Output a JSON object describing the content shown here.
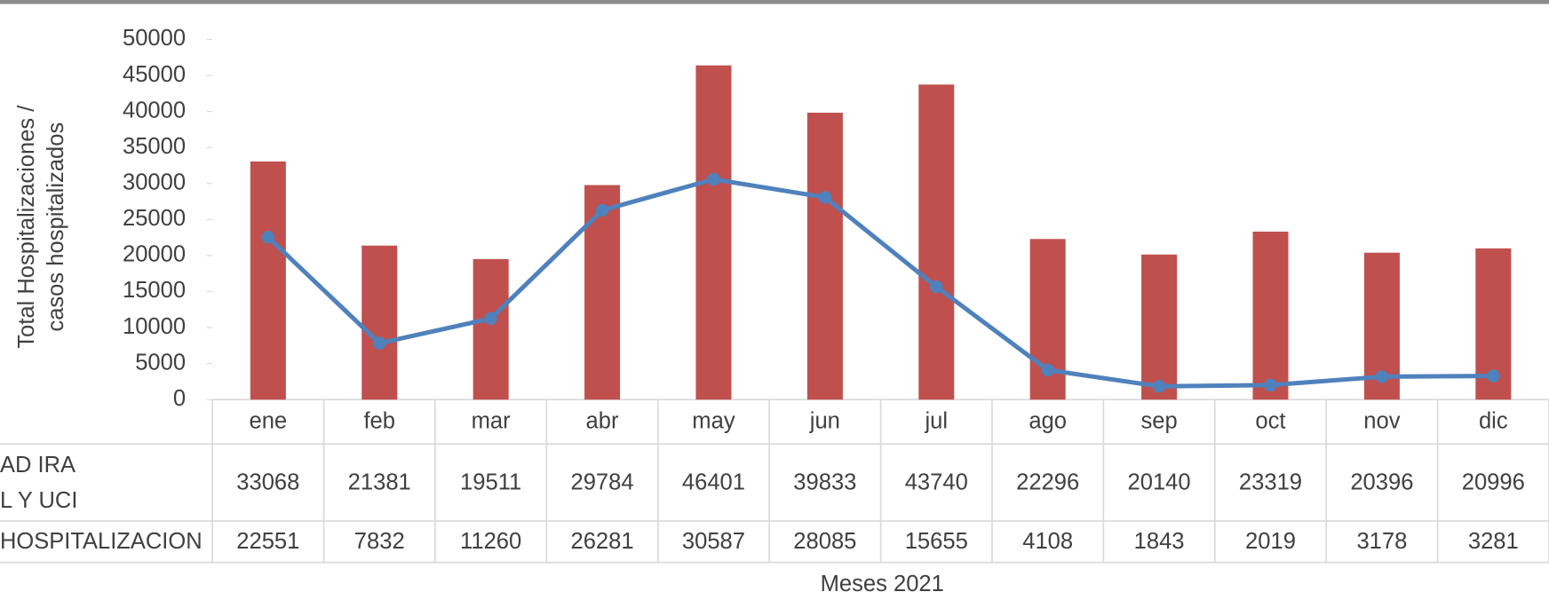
{
  "chart_data": {
    "type": "bar-line-table",
    "xlabel": "Meses 2021",
    "ylabel": [
      "Total Hospitalizaciones /",
      "casos hospitalizados"
    ],
    "categories": [
      "ene",
      "feb",
      "mar",
      "abr",
      "may",
      "jun",
      "jul",
      "ago",
      "sep",
      "oct",
      "nov",
      "dic"
    ],
    "series": [
      {
        "name": "AD IRA\nL Y UCI",
        "kind": "bar",
        "color": "#c0504d",
        "values": [
          33068,
          21381,
          19511,
          29784,
          46401,
          39833,
          43740,
          22296,
          20140,
          23319,
          20396,
          20996
        ]
      },
      {
        "name": "HOSPITALIZACION",
        "kind": "line",
        "color": "#4f81bd",
        "values": [
          22551,
          7832,
          11260,
          26281,
          30587,
          28085,
          15655,
          4108,
          1843,
          2019,
          3178,
          3281
        ]
      }
    ],
    "ylim": [
      0,
      50000
    ],
    "yticks": [
      0,
      5000,
      10000,
      15000,
      20000,
      25000,
      30000,
      35000,
      40000,
      45000,
      50000
    ]
  }
}
